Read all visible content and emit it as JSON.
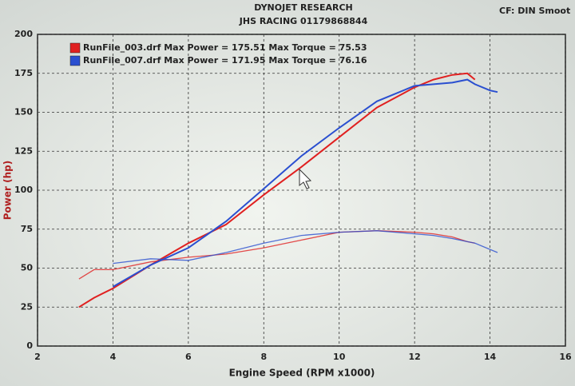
{
  "chart_data": {
    "type": "line",
    "title": "DYNOJET RESEARCH",
    "subtitle": "JHS RACING 01179868844",
    "annotation": "CF: DIN  Smoot",
    "x_label": "Engine Speed (RPM x1000)",
    "y_label": "Power (hp)",
    "x": [
      3.1,
      3.5,
      4,
      5,
      6,
      7,
      8,
      9,
      10,
      11,
      12,
      12.5,
      13,
      13.4,
      13.6,
      14,
      14.2
    ],
    "series": [
      {
        "name": "RunFile_003.drf Max Power = 175.51 Max Torque = 75.53",
        "color": "#e02020",
        "values": [
          25,
          31,
          37,
          52,
          66,
          78,
          97,
          115,
          134,
          153,
          166,
          171,
          174,
          175,
          171,
          null,
          null
        ],
        "torque": [
          43,
          49,
          49,
          54,
          57,
          59,
          63,
          68,
          73,
          74,
          73,
          72,
          70,
          67,
          66,
          null,
          null
        ]
      },
      {
        "name": "RunFile_007.drf Max Power = 171.95 Max Torque = 76.16",
        "color": "#2a4fd0",
        "values": [
          null,
          null,
          38,
          52,
          63,
          80,
          101,
          122,
          140,
          157,
          167,
          168,
          169,
          171,
          168,
          164,
          163
        ],
        "torque": [
          null,
          null,
          53,
          56,
          55,
          60,
          66,
          71,
          73,
          74,
          72,
          71,
          69,
          67,
          66,
          62,
          60
        ]
      }
    ],
    "xlim": [
      2,
      16
    ],
    "xticks": [
      2,
      4,
      6,
      8,
      10,
      12,
      14,
      16
    ],
    "ylim": [
      0,
      200
    ],
    "yticks": [
      0,
      25,
      50,
      75,
      100,
      125,
      150,
      175,
      200
    ],
    "grid": true
  }
}
